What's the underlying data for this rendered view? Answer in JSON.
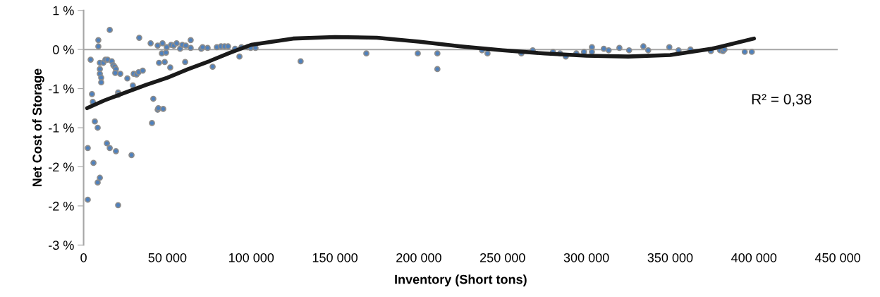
{
  "chart_data": {
    "type": "scatter",
    "xlabel": "Inventory (Short tons)",
    "ylabel": "Net Cost of Storage",
    "annotations": [
      "R² = 0,38"
    ],
    "xlim": [
      0,
      450000
    ],
    "xticks": [
      0,
      {
        "value": 50000,
        "label": "50 000"
      },
      {
        "value": 100000,
        "label": "100 000"
      },
      {
        "value": 150000,
        "label": "150 000"
      },
      {
        "value": 200000,
        "label": "200 000"
      },
      {
        "value": 250000,
        "label": "250 000"
      },
      {
        "value": 300000,
        "label": "300 000"
      },
      {
        "value": 350000,
        "label": "350 000"
      },
      {
        "value": 400000,
        "label": "400 000"
      },
      {
        "value": 450000,
        "label": "450 000"
      }
    ],
    "ylim": [
      -2.5,
      0.5
    ],
    "yticks": [
      {
        "value": 0.5,
        "label": "1 %"
      },
      {
        "value": 0,
        "label": "0 %"
      },
      {
        "value": -0.5,
        "label": "-1 %"
      },
      {
        "value": -1,
        "label": "-1 %"
      },
      {
        "value": -1.5,
        "label": "-2 %"
      },
      {
        "value": -2,
        "label": "-2 %"
      },
      {
        "value": -2.5,
        "label": "-3 %"
      }
    ],
    "grid": false,
    "marker": "circle",
    "ref_lines": [
      {
        "axis": "y",
        "value": 0,
        "color": "#a6a6a6"
      }
    ],
    "series": [
      {
        "color": "#4f81bd",
        "x": [
          4200,
          5000,
          5500,
          2500,
          2500,
          5900,
          6700,
          8400,
          8400,
          9700,
          8800,
          8800,
          9700,
          9700,
          9700,
          10500,
          10500,
          11800,
          13000,
          14300,
          15600,
          13900,
          15600,
          16800,
          17700,
          18500,
          19300,
          18900,
          20600,
          20600,
          19300,
          21900,
          20600,
          26100,
          29400,
          28600,
          29900,
          31600,
          32800,
          35300,
          33200,
          40000,
          41600,
          40800,
          44200,
          44600,
          47500,
          44200,
          47100,
          45000,
          46700,
          48400,
          49200,
          49600,
          51700,
          52200,
          53800,
          55500,
          57600,
          58900,
          60600,
          61000,
          63900,
          63900,
          70200,
          71000,
          74000,
          77000,
          79500,
          82000,
          84100,
          86200,
          90400,
          93000,
          94200,
          98000,
          99700,
          102600,
          129500,
          168700,
          199400,
          211100,
          211100,
          237700,
          241000,
          261200,
          268000,
          280100,
          284300,
          287700,
          294000,
          298600,
          303300,
          303300,
          310400,
          313300,
          319700,
          325500,
          334000,
          336900,
          349500,
          355000,
          362100,
          374300,
          379800,
          381500,
          382400,
          394500,
          398700
        ],
        "values": [
          -0.13,
          -0.57,
          -0.67,
          -1.26,
          -1.92,
          -1.45,
          -0.92,
          -1.0,
          -1.7,
          -1.64,
          0.12,
          0.04,
          -0.17,
          -0.25,
          -0.31,
          -0.36,
          -0.42,
          -0.17,
          -0.13,
          -0.13,
          0.25,
          -1.2,
          -1.26,
          -0.15,
          -0.2,
          -0.22,
          -0.25,
          -0.3,
          -0.55,
          -0.58,
          -1.3,
          -0.31,
          -1.99,
          -0.37,
          -0.46,
          -1.35,
          -0.31,
          -0.32,
          -0.29,
          -0.27,
          0.15,
          0.08,
          -0.63,
          -0.94,
          -0.77,
          -0.75,
          -0.76,
          0.05,
          0.08,
          -0.17,
          -0.05,
          -0.16,
          -0.04,
          0.03,
          -0.23,
          0.06,
          0.05,
          0.08,
          0.01,
          0.06,
          -0.16,
          0.05,
          0.12,
          0.02,
          0.01,
          0.03,
          0.02,
          -0.22,
          0.03,
          0.04,
          0.04,
          0.04,
          0.01,
          -0.09,
          0.03,
          0.03,
          0.02,
          0.02,
          -0.15,
          -0.05,
          -0.05,
          -0.05,
          -0.25,
          -0.01,
          -0.05,
          -0.05,
          -0.01,
          -0.03,
          -0.05,
          -0.09,
          -0.05,
          -0.03,
          0.03,
          -0.03,
          0.01,
          -0.01,
          0.02,
          -0.01,
          0.04,
          -0.01,
          0.03,
          -0.01,
          0.0,
          -0.02,
          -0.01,
          -0.02,
          0.0,
          -0.03,
          -0.03
        ]
      },
      {
        "type": "line",
        "color": "#1a1a1a",
        "marker": "none",
        "x": [
          2100,
          12500,
          25000,
          37500,
          50000,
          62500,
          75000,
          87500,
          100000,
          125000,
          150000,
          175000,
          200000,
          225000,
          250000,
          275000,
          300000,
          325000,
          350000,
          375000,
          400000
        ],
        "values": [
          -0.75,
          -0.65,
          -0.55,
          -0.45,
          -0.36,
          -0.25,
          -0.15,
          -0.04,
          0.06,
          0.14,
          0.16,
          0.15,
          0.1,
          0.04,
          -0.01,
          -0.05,
          -0.08,
          -0.09,
          -0.07,
          0.01,
          0.14
        ]
      }
    ]
  }
}
